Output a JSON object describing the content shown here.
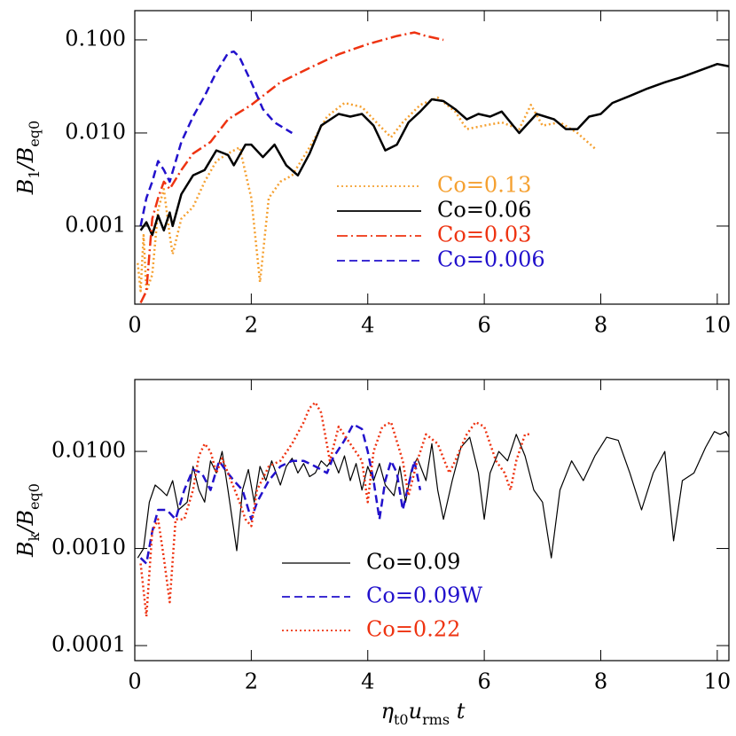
{
  "chart_data": [
    {
      "type": "line",
      "log_y": true,
      "ylabel": [
        {
          "text": "B"
        },
        {
          "text": "1",
          "sub": true
        },
        {
          "text": "/"
        },
        {
          "text": "B"
        },
        {
          "text": "eq0",
          "sub": true
        }
      ],
      "xlim": [
        0,
        10.2
      ],
      "xticks": [
        0,
        2,
        4,
        6,
        8,
        10
      ],
      "ylim": [
        0.000145,
        0.206
      ],
      "yticks": [
        {
          "value": 0.001,
          "label": "0.001"
        },
        {
          "value": 0.01,
          "label": "0.010"
        },
        {
          "value": 0.1,
          "label": "0.100"
        }
      ],
      "series": [
        {
          "name": "Co=0.13",
          "color": "#f5a030",
          "dash": "dotted",
          "linewidth": 2.5,
          "x": [
            0.05,
            0.1,
            0.15,
            0.2,
            0.3,
            0.4,
            0.5,
            0.6,
            0.65,
            0.8,
            1.0,
            1.2,
            1.4,
            1.6,
            1.8,
            2.0,
            2.15,
            2.3,
            2.5,
            2.7,
            3.0,
            3.3,
            3.6,
            3.9,
            4.2,
            4.4,
            4.6,
            4.9,
            5.2,
            5.5,
            5.7,
            6.0,
            6.3,
            6.6,
            6.8,
            7.0,
            7.3,
            7.6,
            7.9
          ],
          "values": [
            0.0004,
            0.0002,
            0.0008,
            0.0002,
            0.0003,
            0.0015,
            0.0025,
            0.0008,
            0.0005,
            0.0012,
            0.0016,
            0.003,
            0.005,
            0.006,
            0.007,
            0.002,
            0.00025,
            0.002,
            0.003,
            0.0035,
            0.007,
            0.015,
            0.021,
            0.019,
            0.012,
            0.009,
            0.013,
            0.02,
            0.024,
            0.017,
            0.011,
            0.012,
            0.013,
            0.011,
            0.02,
            0.012,
            0.013,
            0.01,
            0.0068
          ]
        },
        {
          "name": "Co=0.06",
          "color": "#000000",
          "dash": "solid",
          "linewidth": 2.5,
          "x": [
            0.1,
            0.2,
            0.3,
            0.4,
            0.5,
            0.6,
            0.65,
            0.8,
            1.0,
            1.2,
            1.4,
            1.6,
            1.7,
            1.9,
            2.0,
            2.2,
            2.4,
            2.6,
            2.8,
            3.0,
            3.2,
            3.5,
            3.7,
            3.9,
            4.1,
            4.3,
            4.5,
            4.7,
            4.9,
            5.1,
            5.3,
            5.5,
            5.7,
            5.9,
            6.1,
            6.3,
            6.6,
            6.9,
            7.2,
            7.4,
            7.6,
            7.8,
            8.0,
            8.2,
            8.5,
            8.8,
            9.1,
            9.4,
            9.7,
            10.0,
            10.2
          ],
          "values": [
            0.0009,
            0.0011,
            0.0008,
            0.0013,
            0.0009,
            0.0014,
            0.001,
            0.0022,
            0.0035,
            0.004,
            0.0065,
            0.0058,
            0.0045,
            0.0075,
            0.0075,
            0.0055,
            0.0075,
            0.0045,
            0.0035,
            0.006,
            0.012,
            0.016,
            0.015,
            0.016,
            0.012,
            0.0065,
            0.0075,
            0.013,
            0.017,
            0.023,
            0.022,
            0.018,
            0.014,
            0.016,
            0.015,
            0.017,
            0.01,
            0.016,
            0.014,
            0.011,
            0.011,
            0.015,
            0.016,
            0.021,
            0.025,
            0.03,
            0.035,
            0.04,
            0.047,
            0.055,
            0.052
          ]
        },
        {
          "name": "Co=0.03",
          "color": "#ee3311",
          "dash": "dashdot",
          "linewidth": 2.5,
          "x": [
            0.1,
            0.2,
            0.3,
            0.4,
            0.5,
            0.6,
            0.8,
            1.0,
            1.3,
            1.6,
            2.0,
            2.5,
            3.0,
            3.5,
            4.0,
            4.5,
            4.8,
            5.0,
            5.3
          ],
          "values": [
            0.00015,
            0.0002,
            0.0012,
            0.002,
            0.003,
            0.0025,
            0.004,
            0.006,
            0.008,
            0.014,
            0.02,
            0.035,
            0.05,
            0.07,
            0.09,
            0.11,
            0.12,
            0.11,
            0.1
          ]
        },
        {
          "name": "Co=0.006",
          "color": "#2211cc",
          "dash": "dashed",
          "linewidth": 2.5,
          "x": [
            0.1,
            0.2,
            0.3,
            0.4,
            0.5,
            0.6,
            0.8,
            1.0,
            1.2,
            1.4,
            1.6,
            1.7,
            1.8,
            2.0,
            2.2,
            2.4,
            2.7
          ],
          "values": [
            0.001,
            0.002,
            0.003,
            0.005,
            0.004,
            0.003,
            0.008,
            0.015,
            0.025,
            0.045,
            0.072,
            0.075,
            0.065,
            0.035,
            0.018,
            0.013,
            0.01
          ]
        }
      ]
    },
    {
      "type": "line",
      "log_y": true,
      "ylabel": [
        {
          "text": "B"
        },
        {
          "text": "k",
          "sub": true
        },
        {
          "text": "/"
        },
        {
          "text": "B"
        },
        {
          "text": "eq0",
          "sub": true
        }
      ],
      "xlabel": [
        {
          "text": "η"
        },
        {
          "text": "t0",
          "sub": true
        },
        {
          "text": "u"
        },
        {
          "text": "rms",
          "sub": true
        },
        {
          "text": " t"
        }
      ],
      "xlim": [
        0,
        10.2
      ],
      "xticks": [
        0,
        2,
        4,
        6,
        8,
        10
      ],
      "ylim": [
        7e-05,
        0.055
      ],
      "yticks": [
        {
          "value": 0.0001,
          "label": "0.0001"
        },
        {
          "value": 0.001,
          "label": "0.0010"
        },
        {
          "value": 0.01,
          "label": "0.0100"
        }
      ],
      "series": [
        {
          "name": "Co=0.09",
          "color": "#000000",
          "dash": "solid",
          "linewidth": 1.2,
          "x": [
            0.05,
            0.15,
            0.25,
            0.35,
            0.45,
            0.55,
            0.65,
            0.75,
            0.9,
            1.0,
            1.1,
            1.2,
            1.3,
            1.4,
            1.5,
            1.6,
            1.75,
            1.85,
            1.95,
            2.05,
            2.15,
            2.25,
            2.35,
            2.5,
            2.6,
            2.7,
            2.8,
            2.9,
            3.0,
            3.1,
            3.2,
            3.3,
            3.4,
            3.5,
            3.6,
            3.7,
            3.8,
            3.9,
            4.0,
            4.1,
            4.2,
            4.3,
            4.45,
            4.55,
            4.65,
            4.75,
            4.85,
            5.0,
            5.1,
            5.2,
            5.3,
            5.45,
            5.6,
            5.75,
            5.9,
            6.0,
            6.1,
            6.25,
            6.4,
            6.55,
            6.7,
            6.85,
            7.0,
            7.15,
            7.3,
            7.5,
            7.7,
            7.9,
            8.1,
            8.3,
            8.5,
            8.7,
            8.9,
            9.1,
            9.25,
            9.4,
            9.6,
            9.8,
            9.95,
            10.05,
            10.15,
            10.2
          ],
          "values": [
            0.0008,
            0.001,
            0.003,
            0.0045,
            0.004,
            0.0035,
            0.005,
            0.0025,
            0.003,
            0.007,
            0.004,
            0.003,
            0.008,
            0.006,
            0.01,
            0.004,
            0.00095,
            0.004,
            0.0065,
            0.003,
            0.007,
            0.005,
            0.008,
            0.0045,
            0.007,
            0.0085,
            0.006,
            0.0075,
            0.0055,
            0.006,
            0.008,
            0.007,
            0.0085,
            0.006,
            0.009,
            0.005,
            0.0075,
            0.004,
            0.007,
            0.005,
            0.0075,
            0.0045,
            0.0035,
            0.007,
            0.003,
            0.0065,
            0.0085,
            0.005,
            0.012,
            0.004,
            0.002,
            0.005,
            0.011,
            0.014,
            0.006,
            0.002,
            0.006,
            0.01,
            0.008,
            0.015,
            0.009,
            0.004,
            0.003,
            0.0008,
            0.004,
            0.008,
            0.005,
            0.009,
            0.014,
            0.013,
            0.006,
            0.0025,
            0.006,
            0.01,
            0.0012,
            0.005,
            0.006,
            0.011,
            0.016,
            0.015,
            0.016,
            0.014
          ]
        },
        {
          "name": "Co=0.09W",
          "color": "#2211cc",
          "dash": "dashed",
          "linewidth": 2.5,
          "x": [
            0.1,
            0.2,
            0.3,
            0.4,
            0.55,
            0.7,
            0.85,
            1.0,
            1.15,
            1.3,
            1.45,
            1.55,
            1.7,
            1.85,
            2.0,
            2.1,
            2.3,
            2.5,
            2.7,
            2.9,
            3.1,
            3.3,
            3.4,
            3.6,
            3.75,
            3.9,
            4.0,
            4.1,
            4.2,
            4.3,
            4.4,
            4.5,
            4.6,
            4.7,
            4.8,
            4.9
          ],
          "values": [
            0.0008,
            0.0007,
            0.0015,
            0.0025,
            0.0025,
            0.002,
            0.004,
            0.0065,
            0.006,
            0.004,
            0.008,
            0.0065,
            0.005,
            0.004,
            0.002,
            0.003,
            0.005,
            0.007,
            0.008,
            0.008,
            0.007,
            0.006,
            0.0085,
            0.013,
            0.019,
            0.017,
            0.01,
            0.005,
            0.002,
            0.005,
            0.008,
            0.006,
            0.0025,
            0.0045,
            0.008,
            0.004
          ]
        },
        {
          "name": "Co=0.22",
          "color": "#ee3311",
          "dash": "dotted",
          "linewidth": 2.5,
          "x": [
            0.1,
            0.2,
            0.3,
            0.4,
            0.5,
            0.6,
            0.7,
            0.85,
            1.0,
            1.1,
            1.2,
            1.3,
            1.4,
            1.5,
            1.6,
            1.8,
            1.9,
            2.0,
            2.1,
            2.3,
            2.5,
            2.7,
            2.9,
            3.0,
            3.1,
            3.2,
            3.35,
            3.5,
            3.7,
            3.9,
            4.0,
            4.1,
            4.25,
            4.4,
            4.6,
            4.7,
            4.85,
            5.0,
            5.2,
            5.4,
            5.5,
            5.7,
            5.85,
            6.0,
            6.2,
            6.35,
            6.45,
            6.55,
            6.7,
            6.8
          ],
          "values": [
            0.0007,
            0.0002,
            0.0015,
            0.002,
            0.0008,
            0.00028,
            0.002,
            0.002,
            0.004,
            0.009,
            0.012,
            0.01,
            0.006,
            0.0085,
            0.006,
            0.003,
            0.002,
            0.0017,
            0.004,
            0.007,
            0.008,
            0.012,
            0.02,
            0.028,
            0.032,
            0.025,
            0.008,
            0.018,
            0.012,
            0.008,
            0.003,
            0.01,
            0.018,
            0.02,
            0.008,
            0.0035,
            0.008,
            0.015,
            0.012,
            0.006,
            0.008,
            0.015,
            0.02,
            0.018,
            0.008,
            0.006,
            0.004,
            0.008,
            0.015,
            0.015
          ]
        }
      ]
    }
  ]
}
